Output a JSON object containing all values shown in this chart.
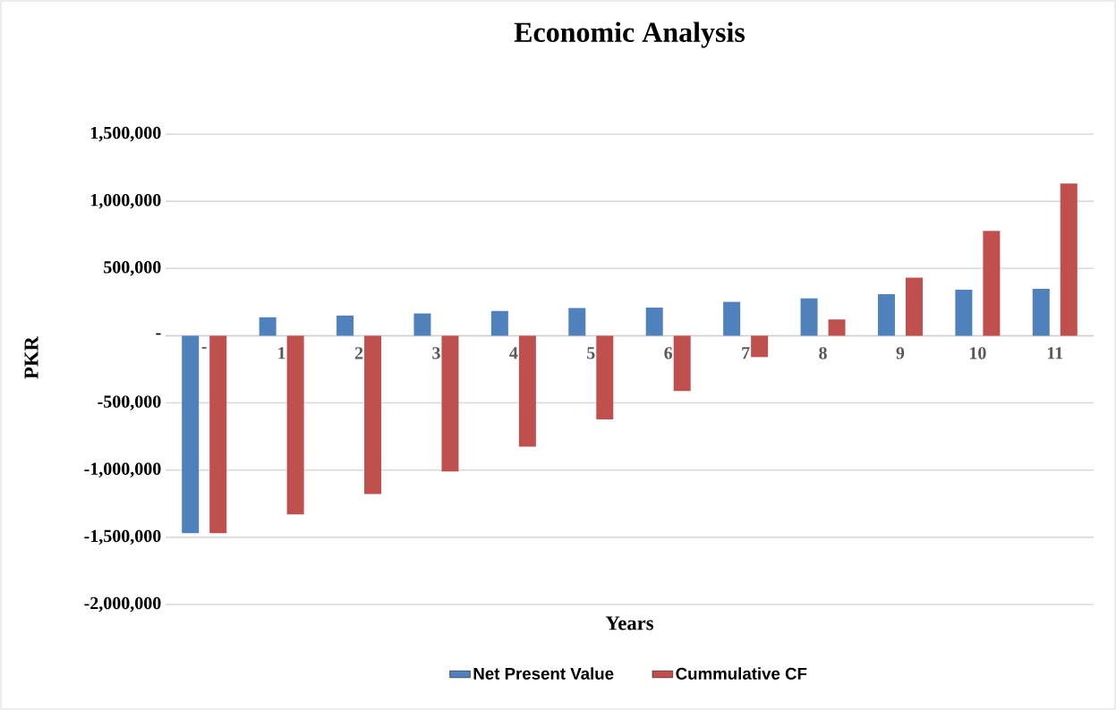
{
  "chart_data": {
    "type": "bar",
    "title": "Economic Analysis",
    "xlabel": "Years",
    "ylabel": "PKR",
    "categories": [
      "-",
      "1",
      "2",
      "3",
      "4",
      "5",
      "6",
      "7",
      "8",
      "9",
      "10",
      "11"
    ],
    "series": [
      {
        "name": "Net Present Value",
        "color": "#4f81bd",
        "values": [
          -1470000,
          137000,
          150000,
          166000,
          184000,
          206000,
          209000,
          252000,
          278000,
          309000,
          342000,
          349000
        ]
      },
      {
        "name": "Cummulative CF",
        "color": "#c0504d",
        "values": [
          -1470000,
          -1330000,
          -1179000,
          -1011000,
          -825000,
          -622000,
          -411000,
          -159000,
          121000,
          432000,
          779000,
          1133000
        ]
      }
    ],
    "ylim": [
      -2000000,
      1500000
    ],
    "yticks": [
      {
        "value": -2000000,
        "label": "-2,000,000"
      },
      {
        "value": -1500000,
        "label": "-1,500,000"
      },
      {
        "value": -1000000,
        "label": "-1,000,000"
      },
      {
        "value": -500000,
        "label": "-500,000"
      },
      {
        "value": 0,
        "label": "-"
      },
      {
        "value": 500000,
        "label": "500,000"
      },
      {
        "value": 1000000,
        "label": "1,000,000"
      },
      {
        "value": 1500000,
        "label": "1,500,000"
      }
    ],
    "grid": "y",
    "legend": "bottom"
  }
}
